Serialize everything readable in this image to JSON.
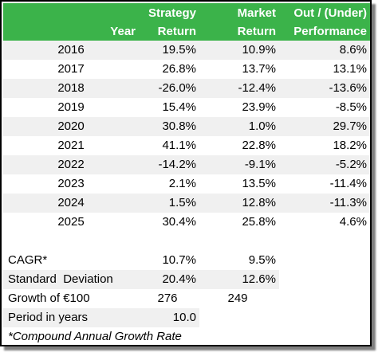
{
  "header": {
    "year": "Year",
    "strategy_line1": "Strategy",
    "strategy_line2": "Return",
    "market_line1": "Market",
    "market_line2": "Return",
    "perf_line1": "Out / (Under)",
    "perf_line2": "Performance"
  },
  "rows": [
    {
      "year": "2016",
      "strategy": "19.5%",
      "market": "10.9%",
      "perf": "8.6%"
    },
    {
      "year": "2017",
      "strategy": "26.8%",
      "market": "13.7%",
      "perf": "13.1%"
    },
    {
      "year": "2018",
      "strategy": "-26.0%",
      "market": "-12.4%",
      "perf": "-13.6%"
    },
    {
      "year": "2019",
      "strategy": "15.4%",
      "market": "23.9%",
      "perf": "-8.5%"
    },
    {
      "year": "2020",
      "strategy": "30.8%",
      "market": "1.0%",
      "perf": "29.7%"
    },
    {
      "year": "2021",
      "strategy": "41.1%",
      "market": "22.8%",
      "perf": "18.2%"
    },
    {
      "year": "2022",
      "strategy": "-14.2%",
      "market": "-9.1%",
      "perf": "-5.2%"
    },
    {
      "year": "2023",
      "strategy": "2.1%",
      "market": "13.5%",
      "perf": "-11.4%"
    },
    {
      "year": "2024",
      "strategy": "1.5%",
      "market": "12.8%",
      "perf": "-11.3%"
    },
    {
      "year": "2025",
      "strategy": "30.4%",
      "market": "25.8%",
      "perf": "4.6%"
    }
  ],
  "summary": {
    "cagr_label": "CAGR*",
    "cagr_strategy": "10.7%",
    "cagr_market": "9.5%",
    "sd_label": "Standard  Deviation",
    "sd_strategy": "20.4%",
    "sd_market": "12.6%",
    "growth_label": "Growth of €100",
    "growth_strategy": "276",
    "growth_market": "249",
    "period_label": "Period in years",
    "period_value": "10.0",
    "footnote": "*Compound Annual Growth Rate"
  },
  "colors": {
    "header_green": "#3bb34a",
    "band_gray": "#f0f0f0"
  }
}
